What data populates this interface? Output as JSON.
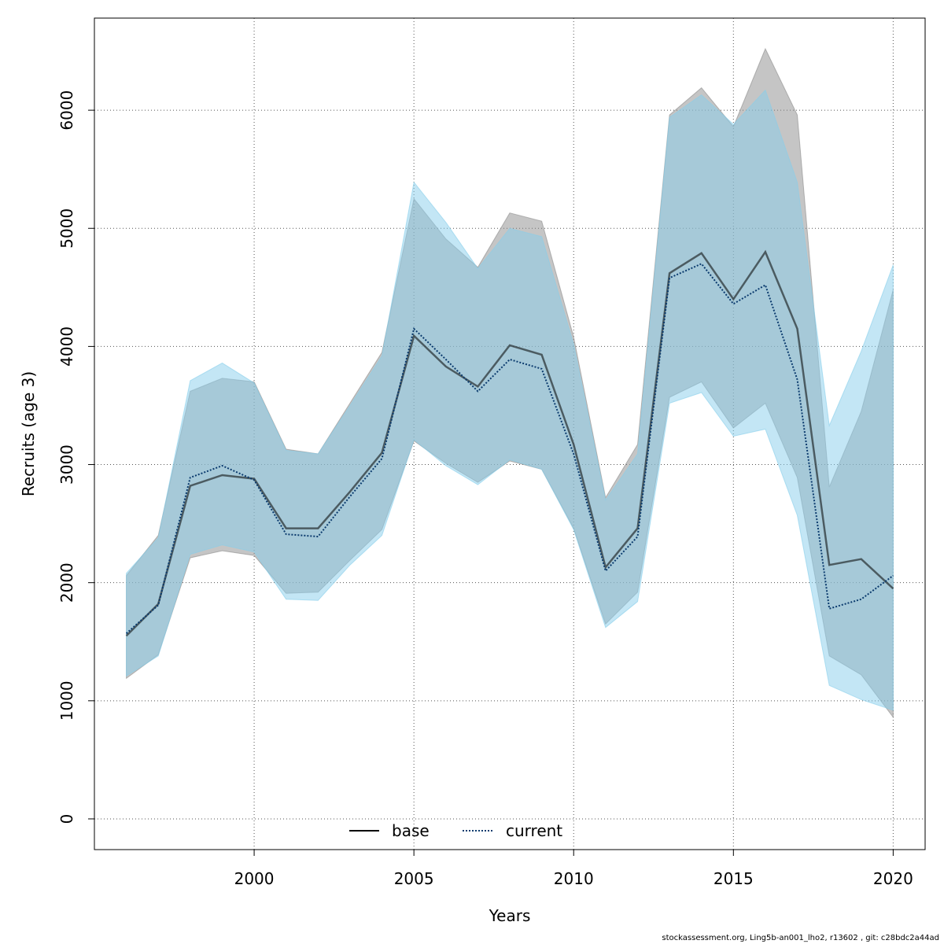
{
  "chart_data": {
    "type": "line",
    "xlabel": "Years",
    "ylabel": "Recruits (age 3)",
    "xlim": [
      1995,
      2021
    ],
    "ylim": [
      -260,
      6780
    ],
    "x_ticks": [
      2000,
      2005,
      2010,
      2015,
      2020
    ],
    "y_ticks": [
      0,
      1000,
      2000,
      3000,
      4000,
      5000,
      6000
    ],
    "grid": true,
    "legend_position": "bottom",
    "x": [
      1996,
      1997,
      1998,
      1999,
      2000,
      2001,
      2002,
      2003,
      2004,
      2005,
      2006,
      2007,
      2008,
      2009,
      2010,
      2011,
      2012,
      2013,
      2014,
      2015,
      2016,
      2017,
      2018,
      2019,
      2020
    ],
    "series": [
      {
        "name": "base",
        "color": "#000000",
        "band_color": "#8c8c8c",
        "line_style": "solid",
        "values": [
          1550,
          1820,
          2820,
          2910,
          2880,
          2460,
          2460,
          2770,
          3100,
          4090,
          3830,
          3660,
          4010,
          3930,
          3170,
          2130,
          2460,
          4620,
          4790,
          4400,
          4800,
          4150,
          2150,
          2200,
          1950
        ],
        "lower": [
          1190,
          1390,
          2210,
          2270,
          2230,
          1910,
          1920,
          2190,
          2450,
          3200,
          3010,
          2850,
          3030,
          2960,
          2460,
          1650,
          1920,
          3570,
          3700,
          3310,
          3520,
          2890,
          1380,
          1220,
          860
        ],
        "upper": [
          2060,
          2400,
          3620,
          3730,
          3700,
          3130,
          3090,
          3520,
          3950,
          5250,
          4910,
          4670,
          5130,
          5060,
          4080,
          2720,
          3170,
          5960,
          6190,
          5860,
          6520,
          5960,
          2810,
          3450,
          4480
        ]
      },
      {
        "name": "current",
        "color": "#0b3b6e",
        "band_color": "#87ceeb",
        "line_style": "dotted",
        "values": [
          1570,
          1810,
          2890,
          2990,
          2870,
          2410,
          2390,
          2730,
          3050,
          4150,
          3890,
          3620,
          3890,
          3810,
          3090,
          2100,
          2390,
          4580,
          4700,
          4360,
          4520,
          3720,
          1780,
          1860,
          2060
        ],
        "lower": [
          1210,
          1380,
          2240,
          2320,
          2260,
          1860,
          1850,
          2150,
          2400,
          3210,
          2990,
          2830,
          3040,
          2960,
          2450,
          1620,
          1840,
          3520,
          3610,
          3240,
          3300,
          2570,
          1130,
          1010,
          920
        ],
        "upper": [
          2080,
          2380,
          3710,
          3860,
          3690,
          3120,
          3090,
          3500,
          3920,
          5390,
          5050,
          4660,
          5000,
          4930,
          4020,
          2700,
          3090,
          5940,
          6130,
          5880,
          6170,
          5390,
          3330,
          3960,
          4690
        ]
      }
    ]
  },
  "footer_text": "stockassessment.org, Ling5b-an001_lho2, r13602 , git: c28bdc2a44ad"
}
